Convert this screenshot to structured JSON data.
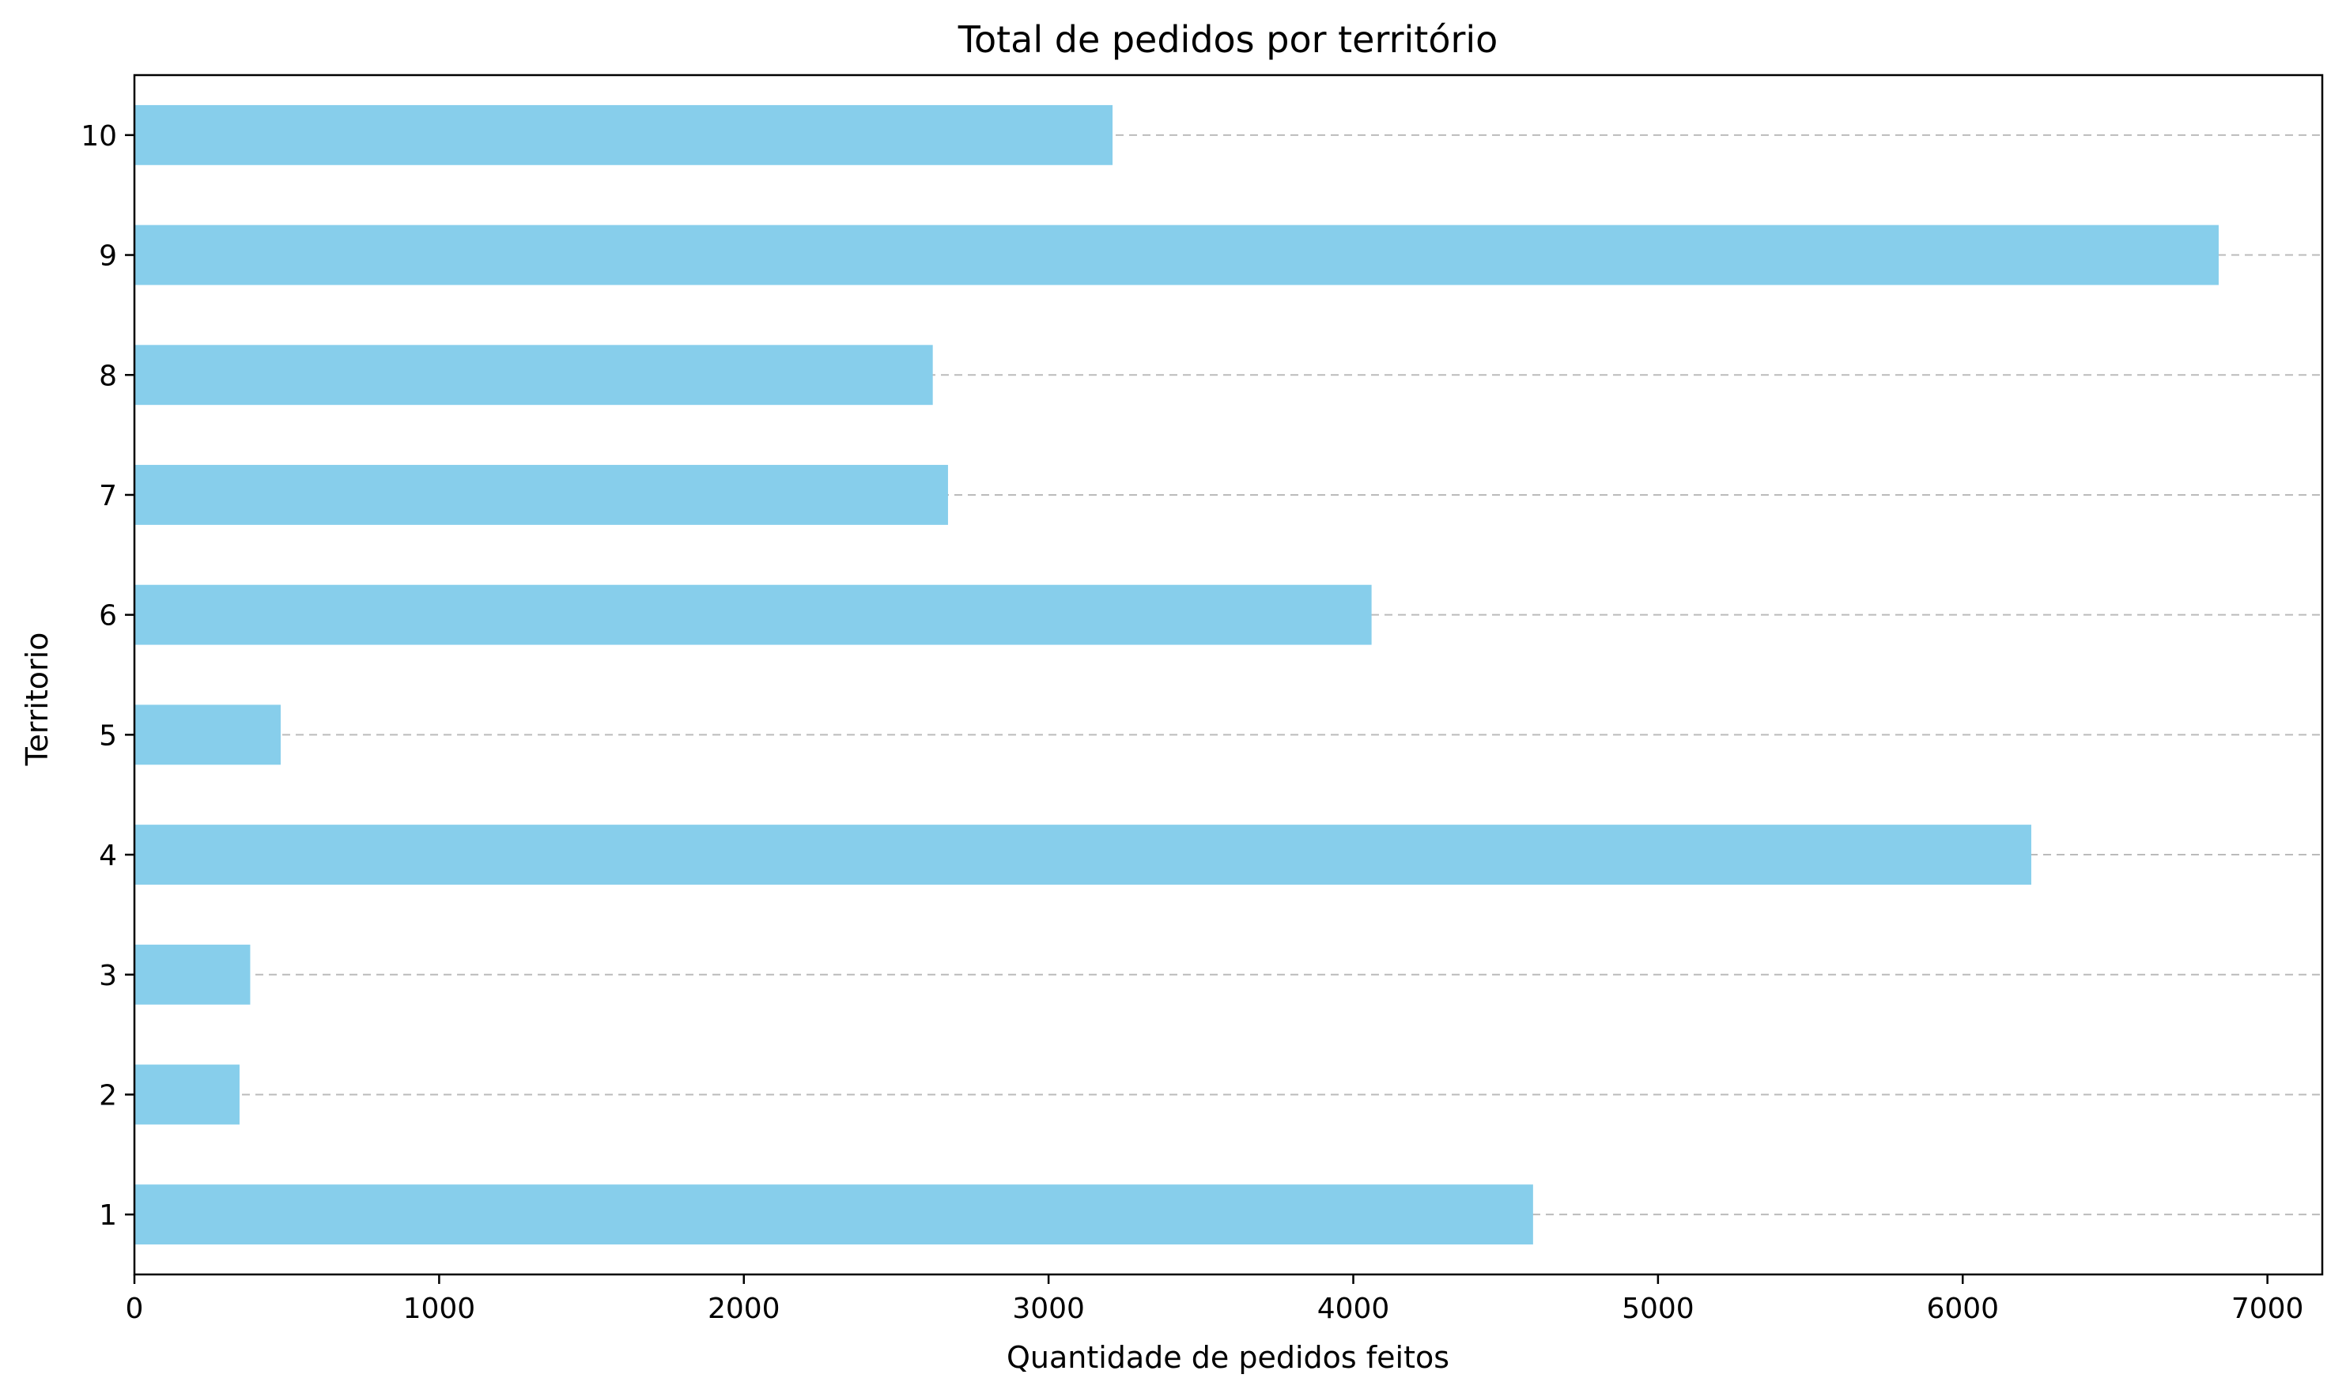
{
  "chart_data": {
    "type": "bar",
    "orientation": "horizontal",
    "title": "Total de pedidos por território",
    "xlabel": "Quantidade de pedidos feitos",
    "ylabel": "Territorio",
    "categories": [
      "1",
      "2",
      "3",
      "4",
      "5",
      "6",
      "7",
      "8",
      "9",
      "10"
    ],
    "values": [
      4590,
      345,
      380,
      6225,
      480,
      4060,
      2670,
      2620,
      6840,
      3210
    ],
    "xlim": [
      0,
      7180
    ],
    "xticks": [
      0,
      1000,
      2000,
      3000,
      4000,
      5000,
      6000,
      7000
    ],
    "grid": "y-dashed",
    "bar_color": "#87ceeb",
    "grid_color": "#b0b0b0"
  }
}
